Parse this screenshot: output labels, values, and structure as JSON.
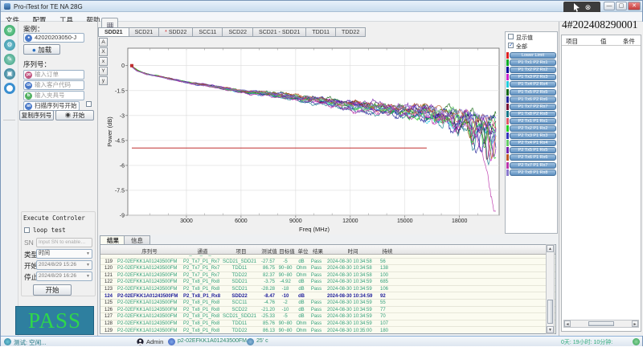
{
  "window": {
    "title": "Pro-iTest for TE NA 28G"
  },
  "menu": {
    "items": [
      "文件",
      "配置",
      "工具",
      "帮助"
    ]
  },
  "left_toolbar": {
    "icons": [
      "settings-icon",
      "gear-icon",
      "edit-icon",
      "build-icon",
      "record-icon"
    ]
  },
  "case_panel": {
    "label": "案例：",
    "case_value": "42020203050-J",
    "load_button": "加载"
  },
  "sn_panel": {
    "label": "序列号：",
    "inputs": [
      {
        "badge": "po",
        "color": "#c05580",
        "placeholder": "输入订单"
      },
      {
        "badge": "cn",
        "color": "#4878c8",
        "placeholder": "输入客户代码"
      },
      {
        "badge": "fx",
        "color": "#50b060",
        "placeholder": "输入夹具号"
      },
      {
        "badge": "sn",
        "color": "#4878c8",
        "placeholder": "扫描序列号开始"
      }
    ],
    "copy_button": "复制序列号",
    "start_button": "开始"
  },
  "execute_panel": {
    "title": "Execute Controler",
    "loop_label": "loop test",
    "sn_label": "SN",
    "sn_placeholder": "Input SN to enable…",
    "type_label": "类型",
    "type_value": "时间",
    "start_label": "开始",
    "start_value": "2024/8/29 15:26",
    "stop_label": "停止",
    "stop_value": "2024/8/29 16:26",
    "run_button": "开始"
  },
  "pass_banner": {
    "text": "PASS",
    "bg": "#2e7f9f",
    "fg": "#2ed74a"
  },
  "chart_panel": {
    "page_tab": "图",
    "tabs": [
      "SDD21",
      "SCD21",
      "SDD22",
      "SCC11",
      "SCD22",
      "SCD21 - SDD21",
      "TDD11",
      "TDD22"
    ],
    "starred_tab": "SDD22",
    "active_tab": "SDD21",
    "zoom_buttons": [
      "A",
      "X",
      "x",
      "Y",
      "y"
    ]
  },
  "chart_data": {
    "type": "line",
    "title": "",
    "xlabel": "Freq (MHz)",
    "ylabel": "Power (dB)",
    "xlim": [
      0,
      20000
    ],
    "ylim": [
      -9,
      1.05
    ],
    "xticks": [
      3000,
      6000,
      9000,
      12000,
      15000,
      18000
    ],
    "yticks": [
      0,
      -1.5,
      -3,
      -4.5,
      -6,
      -7.5,
      -9
    ],
    "grid": true,
    "lower_limit": {
      "value": -4.95,
      "x_end": 16200,
      "color": "#c03030"
    },
    "trend": [
      [
        0,
        -0.05
      ],
      [
        300,
        -0.3
      ],
      [
        800,
        -0.5
      ],
      [
        1500,
        -0.65
      ],
      [
        3000,
        -1.0
      ],
      [
        4500,
        -1.25
      ],
      [
        6000,
        -1.55
      ],
      [
        7500,
        -1.7
      ],
      [
        9000,
        -1.95
      ],
      [
        10500,
        -2.15
      ],
      [
        12000,
        -2.4
      ],
      [
        13500,
        -2.55
      ],
      [
        15000,
        -2.75
      ],
      [
        16500,
        -2.9
      ],
      [
        18000,
        -3.15
      ],
      [
        19000,
        -3.4
      ],
      [
        20000,
        -3.8
      ]
    ],
    "series_note": "16 S-parameter traces P1Tx1..8/P2Rx and P2Tx1..8/P1Rx, noisy descending insertion-loss curves"
  },
  "legend": {
    "show_value_label": "显示值",
    "show_value_checked": false,
    "all_label": "全部",
    "all_checked": true,
    "items": [
      {
        "name": "Lower Limit",
        "color": "#dd2222"
      },
      {
        "name": "P1 Tx1 P2 Rx1",
        "color": "#00aa22"
      },
      {
        "name": "P1 Tx2 P2 Rx2",
        "color": "#000099"
      },
      {
        "name": "P1 Tx3 P2 Rx3",
        "color": "#cc22cc"
      },
      {
        "name": "P1 Tx4 P2 Rx4",
        "color": "#22ccdd"
      },
      {
        "name": "P1 Tx5 P2 Rx5",
        "color": "#116611"
      },
      {
        "name": "P1 Tx6 P2 Rx6",
        "color": "#222299"
      },
      {
        "name": "P1 Tx7 P2 Rx7",
        "color": "#771133"
      },
      {
        "name": "P1 Tx8 P2 Rx8",
        "color": "#117788"
      },
      {
        "name": "P2 Tx1 P1 Rx1",
        "color": "#dd5566"
      },
      {
        "name": "P2 Tx2 P1 Rx2",
        "color": "#22cc22"
      },
      {
        "name": "P2 Tx3 P1 Rx3",
        "color": "#3333bb"
      },
      {
        "name": "P2 Tx4 P1 Rx4",
        "color": "#66cc66"
      },
      {
        "name": "P2 Tx5 P1 Rx5",
        "color": "#7722aa"
      },
      {
        "name": "P2 Tx6 P1 Rx6",
        "color": "#bb5522"
      },
      {
        "name": "P2 Tx7 P1 Rx7",
        "color": "#bb33aa"
      },
      {
        "name": "P2 Tx8 P1 Rx8",
        "color": "#8877cc"
      }
    ]
  },
  "right_panel": {
    "title": "4#202408290001",
    "columns": [
      "项目",
      "值",
      "条件"
    ]
  },
  "results_panel": {
    "tabs": [
      "结果",
      "信息"
    ],
    "active_tab": "结果",
    "columns": [
      "",
      "序列号",
      "通道",
      "项目",
      "测试值",
      "目标值",
      "单位",
      "结果",
      "时间",
      "持续"
    ],
    "rows": [
      {
        "n": "118",
        "sn": "P2-02EFKK1A01243500FM",
        "ch": "P2_Tx7_P1_Rx7",
        "item": "SCD22",
        "test": "-21.12",
        "target": "-10",
        "unit": "dB",
        "result": "Pass",
        "time": "2024-08-30 10:34:58",
        "dur": "62",
        "partial": true
      },
      {
        "n": "119",
        "sn": "P2-02EFKK1A01243500FM",
        "ch": "P2_Tx7_P1_Rx7",
        "item": "SCD21_SDD21",
        "test": "-27.57",
        "target": "-5",
        "unit": "dB",
        "result": "Pass",
        "time": "2024-08-30 10:34:58",
        "dur": "56"
      },
      {
        "n": "120",
        "sn": "P2-02EFKK1A01243500FM",
        "ch": "P2_Tx7_P1_Rx7",
        "item": "TDD11",
        "test": "86.75",
        "target": "90~80",
        "unit": "Ohm",
        "result": "Pass",
        "time": "2024-08-30 10:34:58",
        "dur": "138"
      },
      {
        "n": "121",
        "sn": "P2-02EFKK1A01243500FM",
        "ch": "P2_Tx7_P1_Rx7",
        "item": "TDD22",
        "test": "82.37",
        "target": "90~80",
        "unit": "Ohm",
        "result": "Pass",
        "time": "2024-08-30 10:34:58",
        "dur": "100"
      },
      {
        "n": "122",
        "sn": "P2-02EFKK1A01243500FM",
        "ch": "P2_Tx8_P1_Rx8",
        "item": "SDD21",
        "test": "-3.75",
        "target": "-4.92",
        "unit": "dB",
        "result": "Pass",
        "time": "2024-08-30 10:34:59",
        "dur": "685"
      },
      {
        "n": "123",
        "sn": "P2-02EFKK1A01243500FM",
        "ch": "P2_Tx8_P1_Rx8",
        "item": "SCD21",
        "test": "-28.28",
        "target": "-18",
        "unit": "dB",
        "result": "Pass",
        "time": "2024-08-30 10:34:59",
        "dur": "106"
      },
      {
        "n": "124",
        "sn": "P2-02EFKK1A01243500FM",
        "ch": "P2_Tx8_P1_Rx8",
        "item": "SDD22",
        "test": "-8.47",
        "target": "-10",
        "unit": "dB",
        "result": "",
        "time": "2024-08-30 10:34:59",
        "dur": "92",
        "selected": true
      },
      {
        "n": "125",
        "sn": "P2-02EFKK1A01243500FM",
        "ch": "P2_Tx8_P1_Rx8",
        "item": "SCC11",
        "test": "-4.76",
        "target": "-2",
        "unit": "dB",
        "result": "Pass",
        "time": "2024-08-30 10:34:59",
        "dur": "55"
      },
      {
        "n": "126",
        "sn": "P2-02EFKK1A01243500FM",
        "ch": "P2_Tx8_P1_Rx8",
        "item": "SCD22",
        "test": "-21.20",
        "target": "-10",
        "unit": "dB",
        "result": "Pass",
        "time": "2024-08-30 10:34:59",
        "dur": "77"
      },
      {
        "n": "127",
        "sn": "P2-02EFKK1A01243500FM",
        "ch": "P2_Tx8_P1_Rx8",
        "item": "SCD21_SDD21",
        "test": "-25.33",
        "target": "-5",
        "unit": "dB",
        "result": "Pass",
        "time": "2024-08-30 10:34:59",
        "dur": "70"
      },
      {
        "n": "128",
        "sn": "P2-02EFKK1A01243500FM",
        "ch": "P2_Tx8_P1_Rx8",
        "item": "TDD11",
        "test": "85.76",
        "target": "90~80",
        "unit": "Ohm",
        "result": "Pass",
        "time": "2024-08-30 10:34:59",
        "dur": "107"
      },
      {
        "n": "129",
        "sn": "P2-02EFKK1A01243500FM",
        "ch": "P2_Tx8_P1_Rx8",
        "item": "TDD22",
        "test": "86.13",
        "target": "90~80",
        "unit": "Ohm",
        "result": "Pass",
        "time": "2024-08-30 10:35:00",
        "dur": "180"
      }
    ]
  },
  "status_bar": {
    "state": "测试: 空闲...",
    "user": "Admin",
    "device_sn": "p2-02EFKK1A01243500FM",
    "temperature": "25' c",
    "uptime": "0天: 19小时: 10分钟:"
  }
}
